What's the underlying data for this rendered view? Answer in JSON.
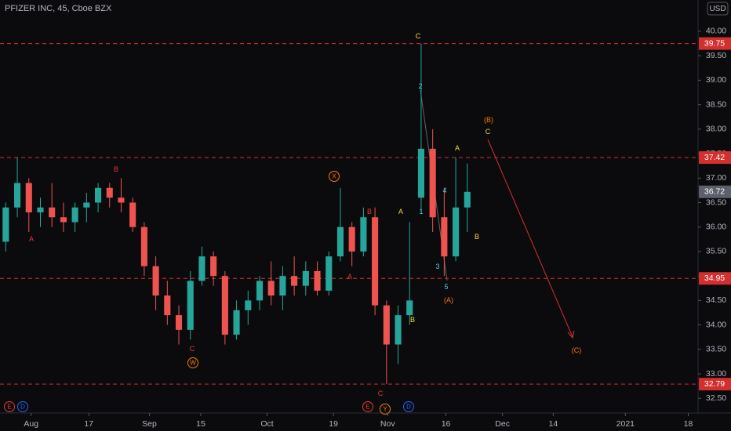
{
  "chart_data": {
    "type": "candlestick",
    "title": "PFIZER INC, 45, Cboe BZX",
    "currency": "USD",
    "x": [
      -4,
      -2,
      0,
      2,
      4,
      6,
      8,
      10,
      12,
      14,
      16,
      18,
      20,
      22,
      24,
      26,
      28,
      30,
      32,
      34,
      36,
      38,
      40,
      42,
      44,
      46,
      48,
      50,
      52,
      54,
      56,
      58,
      60,
      62,
      64,
      66,
      68,
      70,
      72,
      74,
      76
    ],
    "open": [
      35.7,
      36.4,
      36.9,
      36.3,
      36.4,
      36.2,
      36.1,
      36.4,
      36.5,
      36.8,
      36.6,
      36.5,
      36.0,
      35.2,
      34.6,
      34.2,
      33.9,
      34.9,
      35.4,
      35.0,
      33.8,
      34.3,
      34.5,
      34.9,
      34.6,
      35.0,
      34.8,
      35.1,
      34.7,
      35.4,
      36.0,
      35.5,
      36.2,
      34.4,
      33.6,
      34.2,
      36.6,
      37.6,
      36.2,
      35.4,
      36.4
    ],
    "high": [
      36.5,
      37.42,
      37.0,
      36.6,
      36.9,
      36.5,
      36.5,
      36.7,
      36.9,
      36.9,
      37.0,
      36.6,
      36.1,
      35.4,
      34.9,
      34.4,
      35.1,
      35.6,
      35.5,
      35.1,
      34.5,
      34.7,
      35.0,
      35.3,
      35.2,
      35.4,
      35.3,
      35.3,
      35.5,
      36.8,
      36.1,
      36.4,
      36.4,
      34.5,
      34.4,
      36.1,
      39.75,
      38.0,
      36.8,
      37.42,
      37.3
    ],
    "low": [
      35.5,
      36.2,
      35.9,
      36.0,
      36.0,
      35.9,
      35.9,
      36.1,
      36.3,
      36.4,
      36.3,
      35.9,
      35.0,
      34.3,
      34.0,
      33.6,
      33.7,
      34.8,
      34.8,
      33.6,
      33.7,
      34.0,
      34.3,
      34.4,
      34.3,
      34.6,
      34.6,
      34.6,
      34.6,
      35.3,
      35.2,
      35.4,
      34.2,
      32.79,
      33.2,
      34.0,
      36.3,
      35.9,
      35.0,
      35.3,
      35.9
    ],
    "close": [
      36.4,
      36.9,
      36.3,
      36.4,
      36.2,
      36.1,
      36.4,
      36.5,
      36.8,
      36.6,
      36.5,
      36.0,
      35.2,
      34.6,
      34.2,
      33.9,
      34.9,
      35.4,
      35.0,
      33.8,
      34.3,
      34.5,
      34.9,
      34.6,
      35.0,
      34.8,
      35.1,
      34.7,
      35.4,
      36.0,
      35.5,
      36.2,
      34.4,
      33.6,
      34.2,
      34.5,
      37.6,
      36.2,
      35.4,
      36.4,
      36.72
    ],
    "up_color": "#26a69a",
    "down_color": "#ef5350",
    "xlim": [
      -5,
      116
    ],
    "xticks": [
      {
        "value": 0.4,
        "label": "Aug"
      },
      {
        "value": 10.4,
        "label": "17"
      },
      {
        "value": 20.9,
        "label": "Sep"
      },
      {
        "value": 29.8,
        "label": "15"
      },
      {
        "value": 41.3,
        "label": "Oct"
      },
      {
        "value": 52.8,
        "label": "19"
      },
      {
        "value": 62.2,
        "label": "Nov"
      },
      {
        "value": 72.3,
        "label": "16"
      },
      {
        "value": 82.1,
        "label": "Dec"
      },
      {
        "value": 90.9,
        "label": "14"
      },
      {
        "value": 103.4,
        "label": "2021"
      },
      {
        "value": 114.3,
        "label": "18"
      }
    ],
    "ylim": [
      32.2,
      40.64
    ],
    "yticks": [
      {
        "value": 32.5,
        "label": "32.50"
      },
      {
        "value": 33,
        "label": "33.00"
      },
      {
        "value": 33.5,
        "label": "33.50"
      },
      {
        "value": 34,
        "label": "34.00"
      },
      {
        "value": 34.5,
        "label": "34.50"
      },
      {
        "value": 35,
        "label": "35.00"
      },
      {
        "value": 35.5,
        "label": "35.50"
      },
      {
        "value": 36,
        "label": "36.00"
      },
      {
        "value": 36.5,
        "label": "36.50"
      },
      {
        "value": 37,
        "label": "37.00"
      },
      {
        "value": 37.5,
        "label": "37.50"
      },
      {
        "value": 38,
        "label": "38.00"
      },
      {
        "value": 38.5,
        "label": "38.50"
      },
      {
        "value": 39,
        "label": "39.00"
      },
      {
        "value": 39.5,
        "label": "39.50"
      },
      {
        "value": 40,
        "label": "40.00"
      }
    ],
    "levels": [
      39.75,
      37.42,
      34.95,
      32.79
    ],
    "level_color": "#d32f2f",
    "last_price": 36.72,
    "annotations": [
      "A",
      "B",
      "C",
      "W",
      "X",
      "A",
      "B",
      "C",
      "Y",
      "A",
      "B",
      "C",
      "2",
      "1",
      "4",
      "3",
      "5",
      "(A)",
      "A",
      "B",
      "(B)",
      "C",
      "(C)",
      "E",
      "D",
      "E",
      "D"
    ]
  }
}
